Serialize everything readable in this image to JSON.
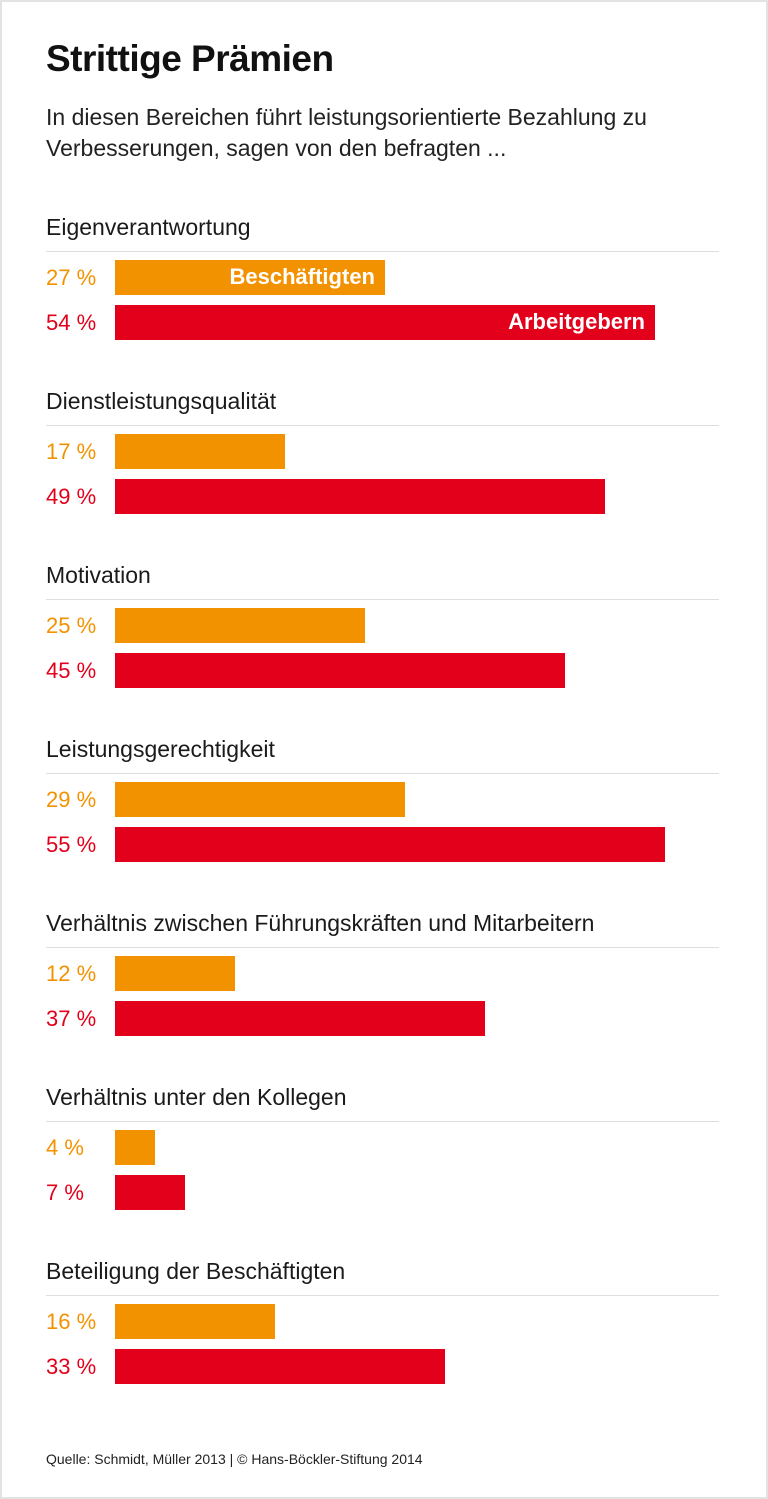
{
  "title": "Strittige Prämien",
  "subtitle": "In diesen Bereichen führt leistungsorientierte Bezahlung zu Verbesserungen, sagen von den befragten ...",
  "source": "Quelle: Schmidt, Müller 2013 | © Hans-Böckler-Stiftung 2014",
  "colors": {
    "beschaeftigte": "#f39200",
    "arbeitgeber": "#e2001a"
  },
  "chart_data": {
    "type": "bar",
    "orientation": "horizontal",
    "unit": "%",
    "categories": [
      "Eigenverantwortung",
      "Dienstleistungsqualität",
      "Motivation",
      "Leistungsgerechtigkeit",
      "Verhältnis zwischen Führungskräften und Mitarbeitern",
      "Verhältnis unter den Kollegen",
      "Beteiligung der Beschäftigten"
    ],
    "series": [
      {
        "name": "Beschäftigten",
        "values": [
          27,
          17,
          25,
          29,
          12,
          4,
          16
        ],
        "value_labels": [
          "27 %",
          "17 %",
          "25 %",
          "29 %",
          "12 %",
          "4 %",
          "16 %"
        ]
      },
      {
        "name": "Arbeitgebern",
        "values": [
          54,
          49,
          45,
          55,
          37,
          7,
          33
        ],
        "value_labels": [
          "54 %",
          "49 %",
          "45 %",
          "55 %",
          "37 %",
          "7 %",
          "33 %"
        ]
      }
    ]
  }
}
